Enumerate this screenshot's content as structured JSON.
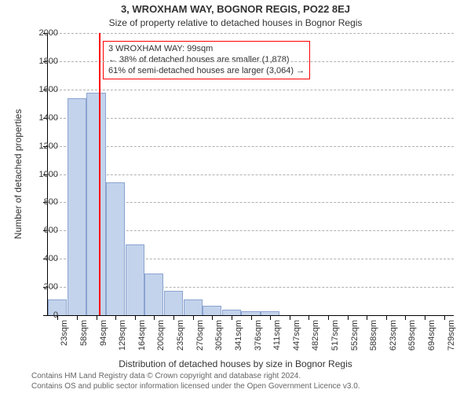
{
  "title": "3, WROXHAM WAY, BOGNOR REGIS, PO22 8EJ",
  "subtitle": "Size of property relative to detached houses in Bognor Regis",
  "ylabel": "Number of detached properties",
  "xlabel": "Distribution of detached houses by size in Bognor Regis",
  "attribution_line1": "Contains HM Land Registry data © Crown copyright and database right 2024.",
  "attribution_line2": "Contains OS and public sector information licensed under the Open Government Licence v3.0.",
  "chart": {
    "type": "histogram",
    "ylim": [
      0,
      2000
    ],
    "ytick_step": 200,
    "yticks": [
      0,
      200,
      400,
      600,
      800,
      1000,
      1200,
      1400,
      1600,
      1800,
      2000
    ],
    "xlabels": [
      "23sqm",
      "58sqm",
      "94sqm",
      "129sqm",
      "164sqm",
      "200sqm",
      "235sqm",
      "270sqm",
      "305sqm",
      "341sqm",
      "376sqm",
      "411sqm",
      "447sqm",
      "482sqm",
      "517sqm",
      "552sqm",
      "588sqm",
      "623sqm",
      "659sqm",
      "694sqm",
      "729sqm"
    ],
    "bar_color": "#c3d3ec",
    "bar_border": "#8aa3cf",
    "grid_color": "#b0b0b0",
    "values": [
      110,
      1540,
      1575,
      940,
      500,
      295,
      175,
      110,
      65,
      40,
      30,
      30,
      0,
      0,
      0,
      0,
      0,
      0,
      0,
      0,
      0
    ],
    "marker": {
      "position_index": 2.15,
      "color": "#ff0000"
    },
    "callout": {
      "border_color": "#ff0000",
      "line1": "3 WROXHAM WAY: 99sqm",
      "line2": "← 38% of detached houses are smaller (1,878)",
      "line3": "61% of semi-detached houses are larger (3,064) →"
    },
    "font_size_title": 13,
    "font_size_subtitle": 12,
    "font_size_axis": 12,
    "font_size_tick": 11,
    "font_size_callout": 11,
    "font_size_attr": 10
  }
}
